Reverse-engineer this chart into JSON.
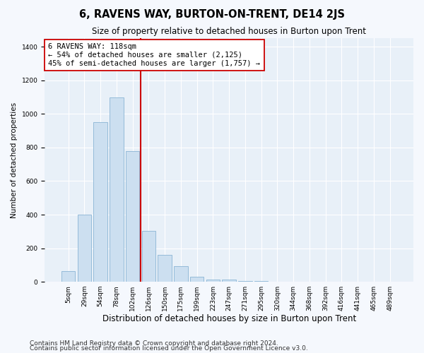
{
  "title": "6, RAVENS WAY, BURTON-ON-TRENT, DE14 2JS",
  "subtitle": "Size of property relative to detached houses in Burton upon Trent",
  "xlabel": "Distribution of detached houses by size in Burton upon Trent",
  "ylabel": "Number of detached properties",
  "categories": [
    "5sqm",
    "29sqm",
    "54sqm",
    "78sqm",
    "102sqm",
    "126sqm",
    "150sqm",
    "175sqm",
    "199sqm",
    "223sqm",
    "247sqm",
    "271sqm",
    "295sqm",
    "320sqm",
    "344sqm",
    "368sqm",
    "392sqm",
    "416sqm",
    "441sqm",
    "465sqm",
    "489sqm"
  ],
  "values": [
    65,
    400,
    950,
    1100,
    780,
    305,
    160,
    95,
    30,
    15,
    12,
    5,
    3,
    2,
    2,
    1,
    1,
    0,
    0,
    0,
    0
  ],
  "bar_color": "#ccdff0",
  "bar_edge_color": "#8ab4d4",
  "vline_color": "#cc0000",
  "annotation_text": "6 RAVENS WAY: 118sqm\n← 54% of detached houses are smaller (2,125)\n45% of semi-detached houses are larger (1,757) →",
  "annotation_box_color": "#ffffff",
  "annotation_box_edge": "#cc0000",
  "ylim": [
    0,
    1450
  ],
  "yticks": [
    0,
    200,
    400,
    600,
    800,
    1000,
    1200,
    1400
  ],
  "footnote1": "Contains HM Land Registry data © Crown copyright and database right 2024.",
  "footnote2": "Contains public sector information licensed under the Open Government Licence v3.0.",
  "fig_bg_color": "#f5f8fd",
  "plot_bg_color": "#e8f0f8",
  "title_fontsize": 10.5,
  "subtitle_fontsize": 8.5,
  "xlabel_fontsize": 8.5,
  "ylabel_fontsize": 7.5,
  "tick_fontsize": 6.5,
  "annot_fontsize": 7.5,
  "footnote_fontsize": 6.5
}
